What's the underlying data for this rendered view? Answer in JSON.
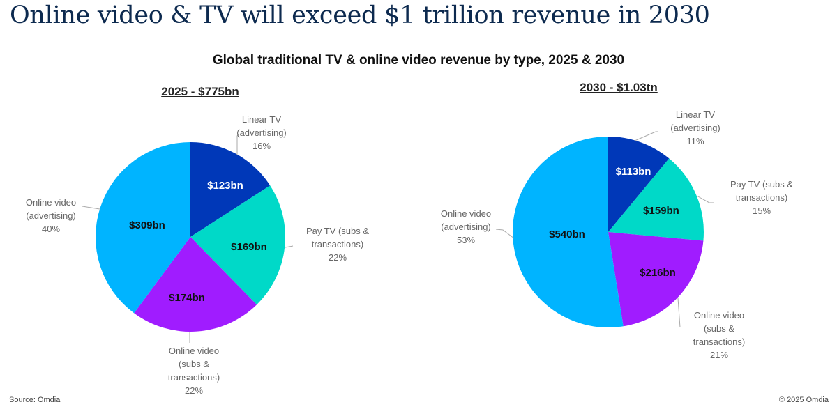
{
  "headline": "Online video & TV will exceed $1 trillion revenue in 2030",
  "footer": {
    "source": "Source: Omdia",
    "copyright": "© 2025 Omdia"
  },
  "colors": {
    "linear_tv_advertising": "#0038b8",
    "pay_tv": "#00d9c8",
    "online_video_subs": "#a01cff",
    "online_video_advertising": "#00b4ff",
    "label_text": "#666666",
    "leader_line": "#aaaaaa"
  },
  "chart_data": [
    {
      "type": "pie",
      "title": "Global traditional TV & online video revenue by type, 2025 & 2030",
      "subtitle": "2025 - $775bn",
      "year": "2025",
      "total_bn": 775,
      "start_angle": "12 o'clock",
      "direction": "clockwise",
      "slices": [
        {
          "name": "Linear TV (advertising)",
          "label_lines": [
            "Linear TV",
            "(advertising)"
          ],
          "value_bn": 123,
          "value_label": "$123bn",
          "percent": 16,
          "percent_label": "16%",
          "color_key": "linear_tv_advertising",
          "value_text_color": "#ffffff"
        },
        {
          "name": "Pay TV (subs & transactions)",
          "label_lines": [
            "Pay TV (subs &",
            "transactions)"
          ],
          "value_bn": 169,
          "value_label": "$169bn",
          "percent": 22,
          "percent_label": "22%",
          "color_key": "pay_tv",
          "value_text_color": "#111111"
        },
        {
          "name": "Online video (subs & transactions)",
          "label_lines": [
            "Online video",
            "(subs &",
            "transactions)"
          ],
          "value_bn": 174,
          "value_label": "$174bn",
          "percent": 22,
          "percent_label": "22%",
          "color_key": "online_video_subs",
          "value_text_color": "#111111"
        },
        {
          "name": "Online video (advertising)",
          "label_lines": [
            "Online video",
            "(advertising)"
          ],
          "value_bn": 309,
          "value_label": "$309bn",
          "percent": 40,
          "percent_label": "40%",
          "color_key": "online_video_advertising",
          "value_text_color": "#111111"
        }
      ]
    },
    {
      "type": "pie",
      "title": "Global traditional TV & online video revenue by type, 2025 & 2030",
      "subtitle": "2030 - $1.03tn",
      "year": "2030",
      "total_bn": 1028,
      "start_angle": "12 o'clock",
      "direction": "clockwise",
      "slices": [
        {
          "name": "Linear TV (advertising)",
          "label_lines": [
            "Linear TV",
            "(advertising)"
          ],
          "value_bn": 113,
          "value_label": "$113bn",
          "percent": 11,
          "percent_label": "11%",
          "color_key": "linear_tv_advertising",
          "value_text_color": "#ffffff"
        },
        {
          "name": "Pay TV (subs & transactions)",
          "label_lines": [
            "Pay TV (subs &",
            "transactions)"
          ],
          "value_bn": 159,
          "value_label": "$159bn",
          "percent": 15,
          "percent_label": "15%",
          "color_key": "pay_tv",
          "value_text_color": "#111111"
        },
        {
          "name": "Online video (subs & transactions)",
          "label_lines": [
            "Online video",
            "(subs &",
            "transactions)"
          ],
          "value_bn": 216,
          "value_label": "$216bn",
          "percent": 21,
          "percent_label": "21%",
          "color_key": "online_video_subs",
          "value_text_color": "#111111"
        },
        {
          "name": "Online video (advertising)",
          "label_lines": [
            "Online video",
            "(advertising)"
          ],
          "value_bn": 540,
          "value_label": "$540bn",
          "percent": 53,
          "percent_label": "53%",
          "color_key": "online_video_advertising",
          "value_text_color": "#111111"
        }
      ]
    }
  ]
}
